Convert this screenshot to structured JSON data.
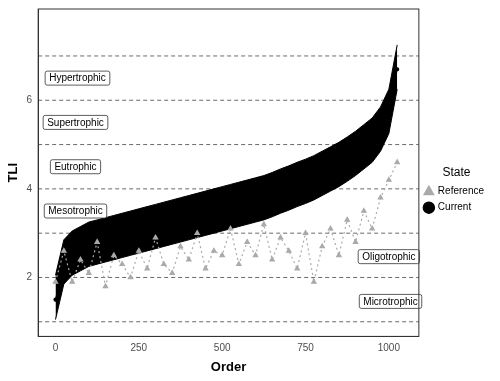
{
  "chart_data": {
    "type": "line",
    "xlabel": "Order",
    "ylabel": "TLI",
    "legend_title": "State",
    "legend": "right",
    "grid": false,
    "xlim": [
      -52,
      1090
    ],
    "ylim": [
      0.67,
      8.06
    ],
    "xticks": [
      0,
      250,
      500,
      750,
      1000
    ],
    "yticks": [
      2,
      4,
      6
    ],
    "boundaries": [
      1,
      2,
      3,
      4,
      5,
      6,
      7
    ],
    "annotations": [
      {
        "text": "Hypertrophic",
        "x": 66,
        "y": 6.5
      },
      {
        "text": "Supertrophic",
        "x": 60,
        "y": 5.5
      },
      {
        "text": "Eutrophic",
        "x": 60,
        "y": 4.5
      },
      {
        "text": "Mesotrophic",
        "x": 60,
        "y": 3.5
      },
      {
        "text": "Oligotrophic",
        "x": 1000,
        "y": 2.47
      },
      {
        "text": "Microtrophic",
        "x": 1005,
        "y": 1.46
      }
    ],
    "x": [
      0,
      25,
      50,
      75,
      100,
      125,
      150,
      175,
      200,
      225,
      250,
      275,
      300,
      325,
      350,
      375,
      400,
      425,
      450,
      475,
      500,
      525,
      550,
      575,
      600,
      625,
      650,
      675,
      700,
      725,
      750,
      775,
      800,
      825,
      850,
      875,
      900,
      925,
      950,
      975,
      1000,
      1025
    ],
    "series": [
      {
        "name": "Current",
        "color": "#000000",
        "marker": "circle",
        "line_style": "solid",
        "values": [
          1.5,
          2.3,
          2.5,
          2.6,
          2.7,
          2.75,
          2.8,
          2.85,
          2.9,
          2.95,
          3.0,
          3.05,
          3.1,
          3.15,
          3.2,
          3.25,
          3.3,
          3.35,
          3.4,
          3.45,
          3.5,
          3.55,
          3.6,
          3.65,
          3.7,
          3.75,
          3.82,
          3.9,
          3.97,
          4.05,
          4.12,
          4.2,
          4.3,
          4.4,
          4.5,
          4.62,
          4.75,
          4.9,
          5.05,
          5.3,
          5.7,
          6.7
        ],
        "lower": [
          1.05,
          1.85,
          2.05,
          2.15,
          2.25,
          2.3,
          2.35,
          2.4,
          2.45,
          2.5,
          2.55,
          2.6,
          2.65,
          2.7,
          2.75,
          2.8,
          2.85,
          2.9,
          2.95,
          3.0,
          3.05,
          3.1,
          3.15,
          3.2,
          3.25,
          3.3,
          3.37,
          3.45,
          3.52,
          3.6,
          3.67,
          3.75,
          3.85,
          3.95,
          4.05,
          4.17,
          4.3,
          4.45,
          4.6,
          4.85,
          5.25,
          6.25
        ],
        "upper": [
          2.05,
          2.85,
          3.05,
          3.15,
          3.25,
          3.3,
          3.35,
          3.4,
          3.45,
          3.5,
          3.55,
          3.6,
          3.65,
          3.7,
          3.75,
          3.8,
          3.85,
          3.9,
          3.95,
          4.0,
          4.05,
          4.1,
          4.15,
          4.2,
          4.25,
          4.3,
          4.37,
          4.45,
          4.52,
          4.6,
          4.67,
          4.75,
          4.85,
          4.95,
          5.05,
          5.17,
          5.3,
          5.45,
          5.6,
          5.85,
          6.25,
          7.25
        ]
      },
      {
        "name": "Reference",
        "color": "#aaaaaa",
        "marker": "triangle",
        "line_style": "dotted",
        "values": [
          1.9,
          2.6,
          1.9,
          2.4,
          2.1,
          2.8,
          1.8,
          2.5,
          2.3,
          2.0,
          2.6,
          2.2,
          2.9,
          2.3,
          2.1,
          2.7,
          2.4,
          3.0,
          2.2,
          2.6,
          2.5,
          3.1,
          2.3,
          2.8,
          2.5,
          3.2,
          2.4,
          2.9,
          2.6,
          2.2,
          3.0,
          1.9,
          2.7,
          3.1,
          2.5,
          3.3,
          2.8,
          3.5,
          3.1,
          3.8,
          4.2,
          4.6
        ]
      }
    ]
  }
}
